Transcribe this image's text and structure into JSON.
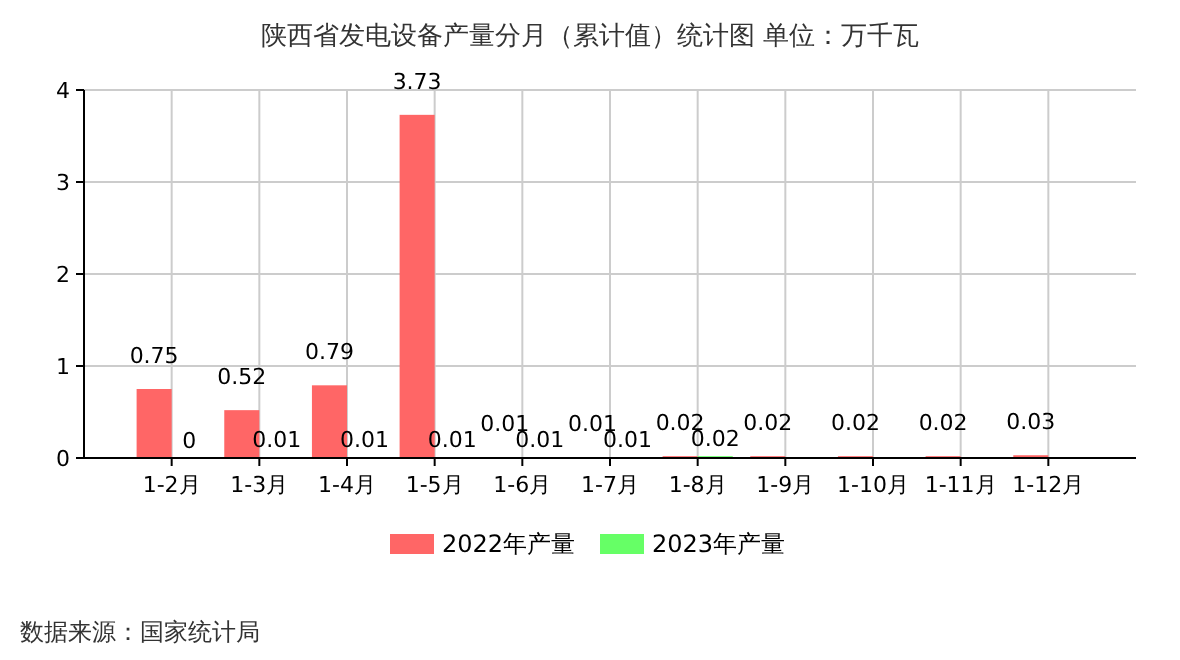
{
  "chart_data": {
    "type": "bar",
    "title": "陕西省发电设备产量分月（累计值）统计图 单位：万千瓦",
    "categories": [
      "1-2月",
      "1-3月",
      "1-4月",
      "1-5月",
      "1-6月",
      "1-7月",
      "1-8月",
      "1-9月",
      "1-10月",
      "1-11月",
      "1-12月"
    ],
    "series": [
      {
        "name": "2022年产量",
        "color": "#ff6666",
        "values": [
          0.75,
          0.52,
          0.79,
          3.73,
          0.01,
          0.01,
          0.02,
          0.02,
          0.02,
          0.02,
          0.03
        ]
      },
      {
        "name": "2023年产量",
        "color": "#66ff66",
        "values": [
          0,
          0.01,
          0.01,
          0.01,
          0.01,
          0.01,
          0.02,
          null,
          null,
          null,
          null
        ]
      }
    ],
    "ylim": [
      0,
      4
    ],
    "yticks": [
      0,
      1,
      2,
      3,
      4
    ],
    "grid": true,
    "legend": "bottom",
    "data_labels": true,
    "annotations": [
      "数据来源：国家统计局"
    ]
  }
}
